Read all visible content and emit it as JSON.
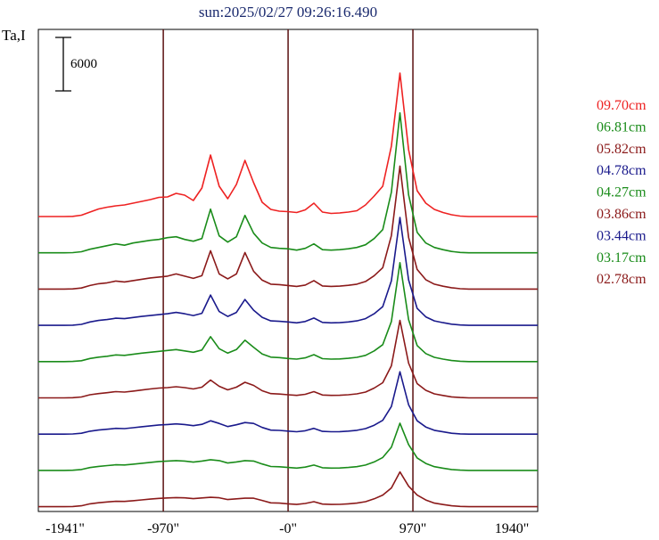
{
  "chart_data": {
    "type": "line",
    "title": "sun:2025/02/27 09:26:16.490",
    "ylabel": "Ta,I",
    "scale_bar_label": "6000",
    "xlim": [
      -1941,
      1940
    ],
    "x_ticks": [
      {
        "value": -1941,
        "label": "-1941\""
      },
      {
        "value": -970,
        "label": "-970\""
      },
      {
        "value": 0,
        "label": "-0\""
      },
      {
        "value": 970,
        "label": "970\""
      },
      {
        "value": 1940,
        "label": "1940\""
      }
    ],
    "vertical_lines": [
      -970,
      0,
      970
    ],
    "grid": false,
    "legend_placement": "right",
    "series": [
      {
        "name": "09.70cm",
        "color": "#ee2222",
        "values": [
          0,
          0,
          0,
          0,
          20,
          150,
          500,
          850,
          1050,
          1200,
          1300,
          1500,
          1700,
          1900,
          2150,
          2200,
          2600,
          2400,
          1800,
          3200,
          6900,
          3400,
          2000,
          3600,
          6300,
          3800,
          1600,
          800,
          600,
          550,
          450,
          750,
          1500,
          500,
          350,
          400,
          500,
          650,
          1300,
          2300,
          3400,
          7900,
          16100,
          7500,
          2900,
          1500,
          800,
          450,
          200,
          50,
          0,
          0,
          0,
          0,
          0,
          0,
          0,
          0,
          0
        ]
      },
      {
        "name": "06.81cm",
        "color": "#1a8c1a",
        "values": [
          0,
          0,
          0,
          0,
          20,
          120,
          400,
          600,
          800,
          1000,
          850,
          1100,
          1250,
          1400,
          1500,
          1700,
          1800,
          1500,
          1300,
          1600,
          4900,
          1900,
          1200,
          1800,
          4200,
          2200,
          1100,
          600,
          500,
          450,
          300,
          500,
          1000,
          350,
          300,
          350,
          450,
          600,
          900,
          1600,
          2600,
          6800,
          15700,
          6500,
          2300,
          1100,
          600,
          350,
          150,
          40,
          0,
          0,
          0,
          0,
          0,
          0,
          0,
          0,
          0
        ]
      },
      {
        "name": "05.82cm",
        "color": "#8b1a1a",
        "values": [
          0,
          0,
          0,
          0,
          20,
          120,
          400,
          600,
          700,
          900,
          800,
          950,
          1100,
          1250,
          1350,
          1450,
          1700,
          1450,
          1200,
          1500,
          4300,
          1700,
          1150,
          1700,
          4100,
          2000,
          1000,
          550,
          500,
          400,
          300,
          450,
          950,
          350,
          300,
          330,
          420,
          550,
          850,
          1500,
          2400,
          6000,
          13800,
          5800,
          2200,
          1050,
          550,
          320,
          150,
          40,
          0,
          0,
          0,
          0,
          0,
          0,
          0,
          0,
          0
        ]
      },
      {
        "name": "04.78cm",
        "color": "#1a1a8c",
        "values": [
          0,
          0,
          0,
          0,
          20,
          110,
          380,
          550,
          650,
          800,
          750,
          880,
          1000,
          1100,
          1200,
          1300,
          1450,
          1300,
          1100,
          1350,
          3400,
          1550,
          1000,
          1450,
          2900,
          1700,
          900,
          500,
          450,
          380,
          280,
          430,
          820,
          330,
          280,
          300,
          380,
          500,
          750,
          1300,
          2100,
          5000,
          12100,
          5100,
          1900,
          950,
          500,
          300,
          130,
          40,
          0,
          0,
          0,
          0,
          0,
          0,
          0,
          0,
          0
        ]
      },
      {
        "name": "04.27cm",
        "color": "#1a8c1a",
        "values": [
          0,
          0,
          0,
          0,
          20,
          100,
          350,
          500,
          600,
          750,
          700,
          820,
          950,
          1050,
          1150,
          1250,
          1350,
          1200,
          1050,
          1300,
          2800,
          1450,
          950,
          1350,
          2400,
          1600,
          850,
          500,
          450,
          350,
          280,
          420,
          780,
          330,
          280,
          300,
          370,
          480,
          700,
          1200,
          1900,
          4500,
          11100,
          4700,
          1800,
          900,
          480,
          280,
          120,
          35,
          0,
          0,
          0,
          0,
          0,
          0,
          0,
          0,
          0
        ]
      },
      {
        "name": "03.86cm",
        "color": "#8b1a1a",
        "values": [
          0,
          0,
          0,
          0,
          20,
          100,
          350,
          480,
          580,
          700,
          650,
          760,
          880,
          1000,
          1100,
          1150,
          1250,
          1150,
          1000,
          1200,
          2000,
          1300,
          900,
          1200,
          1750,
          1400,
          800,
          480,
          430,
          350,
          280,
          400,
          700,
          320,
          280,
          290,
          350,
          450,
          650,
          1100,
          1700,
          3600,
          8700,
          3900,
          1600,
          850,
          450,
          270,
          110,
          35,
          0,
          0,
          0,
          0,
          0,
          0,
          0,
          0,
          0
        ]
      },
      {
        "name": "03.44cm",
        "color": "#1a1a8c",
        "values": [
          0,
          0,
          0,
          0,
          20,
          100,
          330,
          460,
          550,
          650,
          620,
          720,
          830,
          930,
          1030,
          1080,
          1150,
          1080,
          950,
          1100,
          1500,
          1200,
          850,
          1050,
          1300,
          1200,
          750,
          450,
          420,
          340,
          270,
          380,
          650,
          310,
          270,
          280,
          340,
          430,
          620,
          1000,
          1550,
          3100,
          7000,
          3300,
          1500,
          800,
          430,
          260,
          100,
          30,
          0,
          0,
          0,
          0,
          0,
          0,
          0,
          0,
          0
        ]
      },
      {
        "name": "03.17cm",
        "color": "#1a8c1a",
        "values": [
          0,
          0,
          0,
          0,
          20,
          100,
          320,
          450,
          540,
          630,
          610,
          700,
          800,
          900,
          1000,
          1050,
          1100,
          1050,
          930,
          1050,
          1200,
          1100,
          830,
          950,
          1100,
          1050,
          720,
          440,
          410,
          330,
          260,
          370,
          600,
          300,
          260,
          270,
          330,
          420,
          600,
          950,
          1450,
          2600,
          5300,
          2900,
          1400,
          780,
          420,
          250,
          100,
          30,
          0,
          0,
          0,
          0,
          0,
          0,
          0,
          0,
          0
        ]
      },
      {
        "name": "02.78cm",
        "color": "#8b1a1a",
        "values": [
          0,
          0,
          0,
          0,
          20,
          100,
          320,
          440,
          530,
          600,
          590,
          670,
          760,
          850,
          930,
          980,
          1020,
          990,
          900,
          980,
          1050,
          1000,
          800,
          880,
          950,
          950,
          700,
          430,
          400,
          320,
          250,
          360,
          560,
          290,
          250,
          260,
          320,
          400,
          560,
          880,
          1300,
          2100,
          3900,
          2300,
          1300,
          750,
          400,
          240,
          100,
          30,
          0,
          0,
          0,
          0,
          0,
          0,
          0,
          0,
          0
        ]
      }
    ]
  }
}
